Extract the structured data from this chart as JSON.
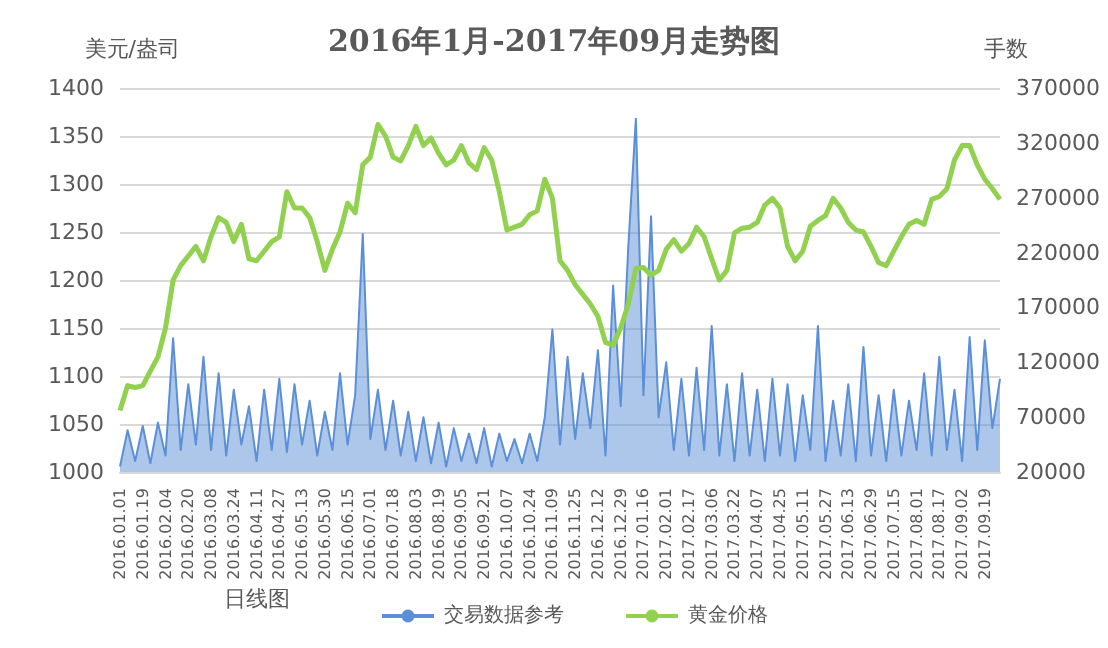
{
  "chart_data": {
    "type": "line",
    "title": "2016年1月-2017年09月走势图",
    "xlabel": "日线图",
    "ylabel": "美元/盎司",
    "y2label": "手数",
    "categories": [
      "2016.01.01",
      null,
      null,
      "2016.01.19",
      null,
      null,
      "2016.02.04",
      null,
      null,
      "2016.02.20",
      null,
      null,
      "2016.03.08",
      null,
      null,
      "2016.03.24",
      null,
      null,
      "2016.04.11",
      null,
      null,
      "2016.04.27",
      null,
      null,
      "2016.05.13",
      null,
      null,
      "2016.05.30",
      null,
      null,
      "2016.06.15",
      null,
      null,
      "2016.07.01",
      null,
      null,
      "2016.07.18",
      null,
      null,
      "2016.08.03",
      null,
      null,
      "2016.08.19",
      null,
      null,
      "2016.09.05",
      null,
      null,
      "2016.09.21",
      null,
      null,
      "2016.10.07",
      null,
      null,
      "2016.10.24",
      null,
      null,
      "2016.11.09",
      null,
      null,
      "2016.11.25",
      null,
      null,
      "2016.12.12",
      null,
      null,
      "2016.12.29",
      null,
      null,
      "2017.01.16",
      null,
      null,
      "2017.02.01",
      null,
      null,
      "2017.02.17",
      null,
      null,
      "2017.03.06",
      null,
      null,
      "2017.03.22",
      null,
      null,
      "2017.04.07",
      null,
      null,
      "2017.04.25",
      null,
      null,
      "2017.05.11",
      null,
      null,
      "2017.05.27",
      null,
      null,
      "2017.06.13",
      null,
      null,
      "2017.06.29",
      null,
      null,
      "2017.07.15",
      null,
      null,
      "2017.08.01",
      null,
      null,
      "2017.08.17",
      null,
      null,
      "2017.09.02",
      null,
      null,
      "2017.09.19",
      null,
      null
    ],
    "series": [
      {
        "name": "交易数据参考",
        "type": "area",
        "axis": "y2",
        "color": "#5b8fd8",
        "values": [
          25000,
          58000,
          30000,
          62000,
          28000,
          65000,
          35000,
          142000,
          40000,
          100000,
          45000,
          125000,
          40000,
          110000,
          35000,
          95000,
          45000,
          80000,
          30000,
          95000,
          40000,
          105000,
          38000,
          100000,
          45000,
          85000,
          35000,
          75000,
          40000,
          110000,
          45000,
          90000,
          237000,
          50000,
          95000,
          40000,
          85000,
          35000,
          75000,
          30000,
          70000,
          28000,
          65000,
          25000,
          60000,
          30000,
          55000,
          28000,
          60000,
          25000,
          55000,
          30000,
          50000,
          28000,
          55000,
          30000,
          70000,
          150000,
          45000,
          125000,
          50000,
          110000,
          60000,
          131000,
          35000,
          190000,
          80000,
          225000,
          342000,
          90000,
          253000,
          70000,
          120000,
          40000,
          105000,
          35000,
          115000,
          40000,
          153000,
          35000,
          100000,
          30000,
          110000,
          35000,
          95000,
          30000,
          105000,
          35000,
          100000,
          30000,
          90000,
          40000,
          153000,
          30000,
          85000,
          35000,
          100000,
          30000,
          134000,
          35000,
          90000,
          30000,
          95000,
          35000,
          85000,
          40000,
          110000,
          35000,
          125000,
          40000,
          95000,
          30000,
          143000,
          40000,
          140000,
          60000,
          105000
        ]
      },
      {
        "name": "黄金价格",
        "type": "line",
        "color": "#92d050",
        "values": [
          1064,
          1090,
          1088,
          1090,
          1105,
          1120,
          1150,
          1200,
          1215,
          1225,
          1235,
          1220,
          1245,
          1265,
          1260,
          1240,
          1258,
          1222,
          1220,
          1230,
          1240,
          1245,
          1292,
          1275,
          1275,
          1265,
          1240,
          1210,
          1232,
          1250,
          1280,
          1270,
          1320,
          1328,
          1362,
          1350,
          1328,
          1324,
          1340,
          1360,
          1340,
          1348,
          1332,
          1320,
          1325,
          1340,
          1322,
          1315,
          1338,
          1325,
          1292,
          1252,
          1255,
          1258,
          1268,
          1272,
          1305,
          1285,
          1220,
          1210,
          1195,
          1185,
          1175,
          1162,
          1135,
          1132,
          1150,
          1175,
          1212,
          1213,
          1205,
          1210,
          1232,
          1242,
          1230,
          1238,
          1255,
          1245,
          1222,
          1200,
          1210,
          1249,
          1254,
          1255,
          1260,
          1278,
          1285,
          1275,
          1235,
          1220,
          1230,
          1256,
          1262,
          1267,
          1285,
          1275,
          1260,
          1252,
          1250,
          1235,
          1218,
          1215,
          1230,
          1245,
          1258,
          1262,
          1258,
          1284,
          1287,
          1295,
          1325,
          1340,
          1340,
          1320,
          1305,
          1295,
          1284
        ]
      }
    ],
    "ylim": [
      1000,
      1400
    ],
    "yticks": [
      1000,
      1050,
      1100,
      1150,
      1200,
      1250,
      1300,
      1350,
      1400
    ],
    "y2lim": [
      20000,
      370000
    ],
    "y2ticks": [
      20000,
      70000,
      120000,
      170000,
      220000,
      270000,
      320000,
      370000
    ],
    "grid": "y",
    "legend": "bottom",
    "marker": "none",
    "line_style": "solid"
  }
}
